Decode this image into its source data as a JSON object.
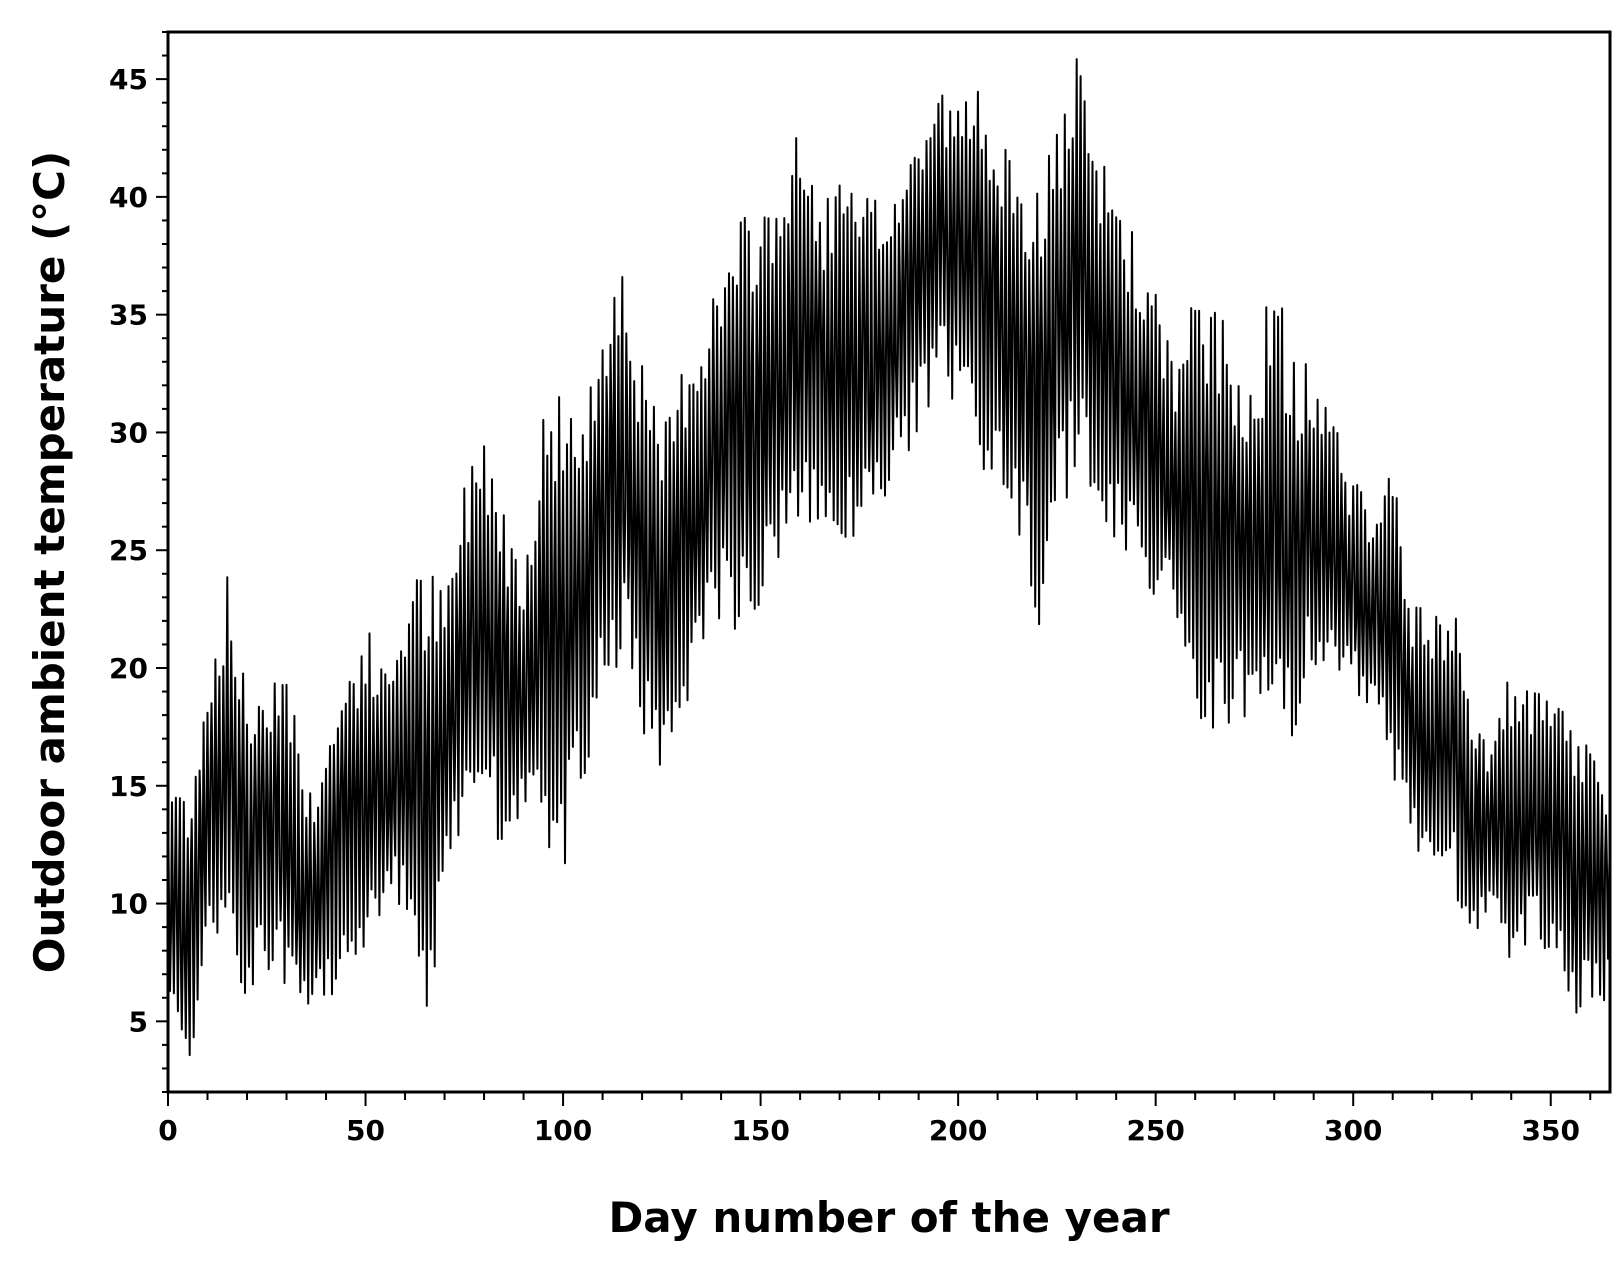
{
  "chart_data": {
    "type": "line",
    "title": "",
    "xlabel": "Day number of the year",
    "ylabel": "Outdoor ambient temperature (°C)",
    "xlim": [
      0,
      365
    ],
    "ylim": [
      2,
      47
    ],
    "xticks": [
      0,
      50,
      100,
      150,
      200,
      250,
      300,
      350
    ],
    "yticks": [
      5,
      10,
      15,
      20,
      25,
      30,
      35,
      40,
      45
    ],
    "grid": false,
    "legend": "none",
    "series": [
      {
        "color": "#000000",
        "x": [
          0,
          5,
          10,
          15,
          20,
          25,
          30,
          35,
          40,
          45,
          50,
          55,
          60,
          65,
          70,
          75,
          80,
          85,
          90,
          95,
          100,
          105,
          110,
          115,
          120,
          125,
          130,
          135,
          140,
          145,
          150,
          155,
          160,
          165,
          170,
          175,
          180,
          185,
          190,
          195,
          200,
          205,
          210,
          215,
          220,
          225,
          230,
          235,
          240,
          245,
          250,
          255,
          260,
          265,
          270,
          275,
          280,
          285,
          290,
          295,
          300,
          305,
          310,
          315,
          320,
          325,
          330,
          335,
          340,
          345,
          350,
          355,
          360,
          365
        ],
        "min": [
          4,
          3,
          7,
          9,
          5,
          7,
          6,
          4,
          5,
          8,
          7,
          9,
          10,
          3,
          10,
          13,
          14,
          12,
          13,
          12,
          10,
          15,
          18,
          20,
          17,
          15,
          18,
          20,
          22,
          21,
          22,
          24,
          26,
          25,
          25,
          25,
          26,
          28,
          30,
          32,
          31,
          29,
          27,
          26,
          21,
          26,
          28,
          27,
          25,
          24,
          23,
          22,
          18,
          16,
          18,
          17,
          16,
          17,
          20,
          19,
          19,
          18,
          15,
          12,
          11,
          11,
          8,
          9,
          7,
          8,
          8,
          5,
          5,
          6
        ],
        "max": [
          16,
          15,
          20,
          24,
          19,
          20,
          21,
          15,
          17,
          20,
          22,
          20,
          23,
          25,
          23,
          28,
          31,
          27,
          25,
          31,
          33,
          30,
          36,
          38,
          33,
          30,
          33,
          35,
          37,
          39,
          40,
          41,
          43,
          40,
          41,
          40,
          40,
          41,
          43,
          45,
          44,
          45,
          44,
          40,
          41,
          43,
          46,
          42,
          41,
          38,
          36,
          33,
          36,
          36,
          33,
          33,
          37,
          33,
          33,
          31,
          28,
          27,
          29,
          23,
          22,
          23,
          19,
          17,
          20,
          19,
          19,
          18,
          17,
          15
        ]
      }
    ]
  }
}
